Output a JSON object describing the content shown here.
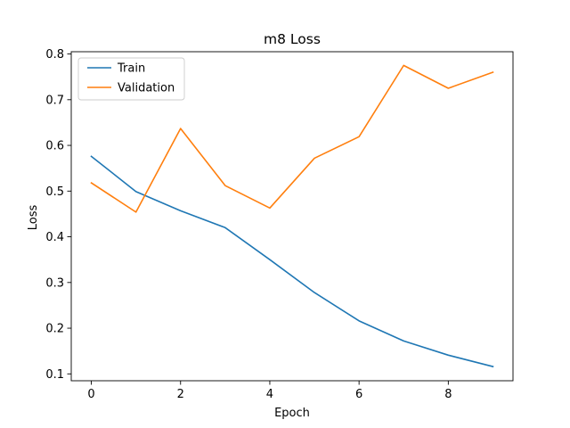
{
  "chart_data": {
    "type": "line",
    "title": "m8 Loss",
    "xlabel": "Epoch",
    "ylabel": "Loss",
    "x": [
      0,
      1,
      2,
      3,
      4,
      5,
      6,
      7,
      8,
      9
    ],
    "xlim": [
      -0.45,
      9.45
    ],
    "ylim": [
      0.085,
      0.805
    ],
    "xticks": [
      0,
      2,
      4,
      6,
      8
    ],
    "yticks": [
      0.1,
      0.2,
      0.3,
      0.4,
      0.5,
      0.6,
      0.7,
      0.8
    ],
    "xtick_labels": [
      "0",
      "2",
      "4",
      "6",
      "8"
    ],
    "ytick_labels": [
      "0.1",
      "0.2",
      "0.3",
      "0.4",
      "0.5",
      "0.6",
      "0.7",
      "0.8"
    ],
    "grid": false,
    "legend_location": "top-left",
    "series": [
      {
        "name": "Train",
        "color": "#1f77b4",
        "values": [
          0.576,
          0.499,
          0.457,
          0.42,
          0.35,
          0.278,
          0.216,
          0.172,
          0.141,
          0.116
        ]
      },
      {
        "name": "Validation",
        "color": "#ff7f0e",
        "values": [
          0.518,
          0.454,
          0.637,
          0.512,
          0.463,
          0.572,
          0.619,
          0.775,
          0.725,
          0.76
        ]
      }
    ]
  }
}
